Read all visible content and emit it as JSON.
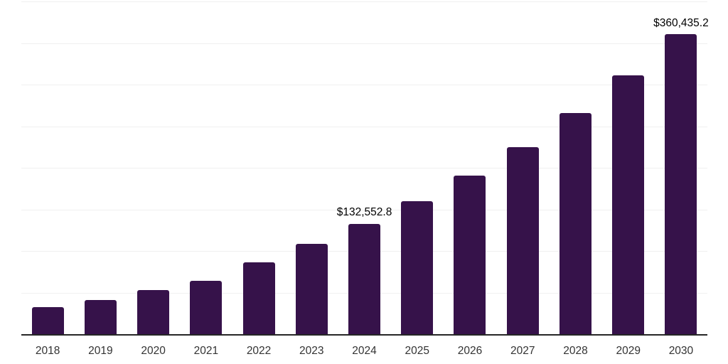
{
  "chart_data": {
    "type": "bar",
    "title": "",
    "xlabel": "",
    "ylabel": "",
    "categories": [
      "2018",
      "2019",
      "2020",
      "2021",
      "2022",
      "2023",
      "2024",
      "2025",
      "2026",
      "2027",
      "2028",
      "2029",
      "2030"
    ],
    "values": [
      32500,
      41000,
      53000,
      64100,
      86300,
      108500,
      132552.8,
      159800,
      190600,
      224800,
      265800,
      311100,
      360435.2
    ],
    "data_labels": [
      "",
      "",
      "",
      "",
      "",
      "",
      "$132,552.8",
      "",
      "",
      "",
      "",
      "",
      "$360,435.2"
    ],
    "ylim": [
      0,
      400000
    ],
    "gridline_interval": 50000,
    "grid": "horizontal",
    "legend": "none",
    "y_axis_labels_visible": false,
    "colors": {
      "bar": "#36124A",
      "gridline": "#f0f0f0",
      "axis_line": "#262626",
      "tick_label": "#333333",
      "data_label": "#000000",
      "background": "#ffffff"
    }
  }
}
